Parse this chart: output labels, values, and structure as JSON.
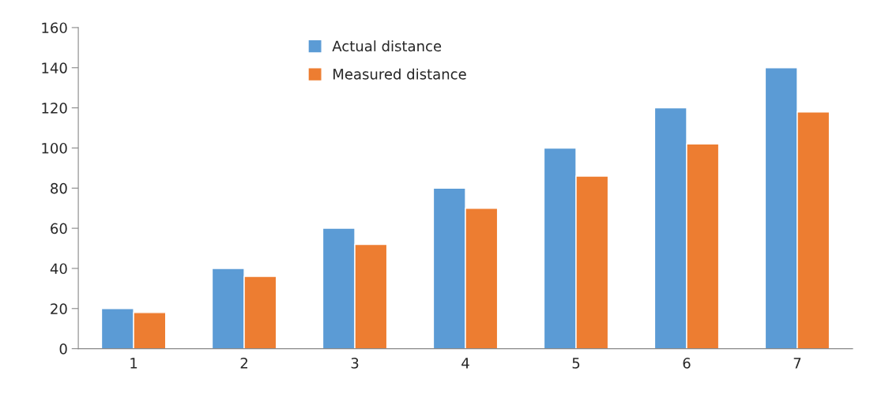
{
  "chart_data": {
    "type": "bar",
    "categories": [
      "1",
      "2",
      "3",
      "4",
      "5",
      "6",
      "7"
    ],
    "series": [
      {
        "name": "Actual distance",
        "color": "#5b9bd5",
        "values": [
          20,
          40,
          60,
          80,
          100,
          120,
          140
        ]
      },
      {
        "name": "Measured distance",
        "color": "#ed7d31",
        "values": [
          18,
          36,
          52,
          70,
          86,
          102,
          118
        ]
      }
    ],
    "ylim": [
      0,
      160
    ],
    "yticks": [
      0,
      20,
      40,
      60,
      80,
      100,
      120,
      140,
      160
    ],
    "legend": "top",
    "grid": false
  }
}
